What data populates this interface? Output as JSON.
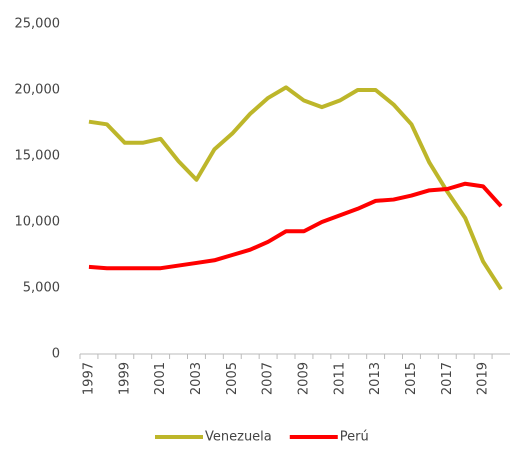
{
  "chart_data": {
    "type": "line",
    "categories": [
      "1997",
      null,
      "1999",
      null,
      "2001",
      null,
      "2003",
      null,
      "2005",
      null,
      "2007",
      null,
      "2009",
      null,
      "2011",
      null,
      "2013",
      null,
      "2015",
      null,
      "2017",
      null,
      "2019",
      null
    ],
    "series": [
      {
        "name": "Venezuela",
        "color": "#bdb62a",
        "values": [
          17600,
          17400,
          16000,
          16000,
          16300,
          14600,
          13200,
          15500,
          16700,
          18200,
          19400,
          20200,
          19200,
          18700,
          19200,
          20000,
          20000,
          18900,
          17400,
          14500,
          12300,
          10300,
          7000,
          4900
        ]
      },
      {
        "name": "Perú",
        "color": "#ff0000",
        "values": [
          6600,
          6500,
          6500,
          6500,
          6500,
          6700,
          6900,
          7100,
          7500,
          7900,
          8500,
          9300,
          9300,
          10000,
          10500,
          11000,
          11600,
          11700,
          12000,
          12400,
          12500,
          12900,
          12700,
          11200
        ]
      }
    ],
    "ylim": [
      0,
      25000
    ],
    "yticks": [
      0,
      {
        "value": 5000,
        "label": "5,000"
      },
      {
        "value": 10000,
        "label": "10,000"
      },
      {
        "value": 15000,
        "label": "15,000"
      },
      {
        "value": 20000,
        "label": "20,000"
      },
      {
        "value": 25000,
        "label": "25,000"
      }
    ],
    "grid": false,
    "legend": "bottom"
  }
}
